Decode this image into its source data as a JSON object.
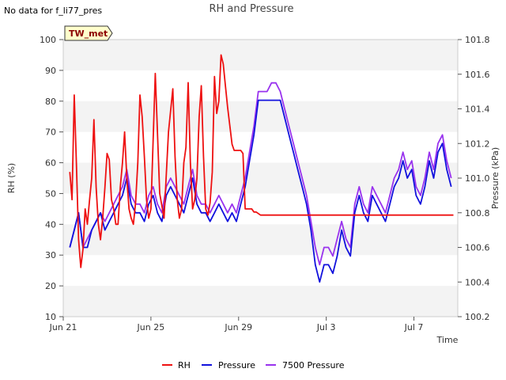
{
  "notice": "No data for f_li77_pres",
  "badge_label": "TW_met",
  "chart_data": {
    "type": "line",
    "title": "RH and Pressure",
    "xlabel": "Time",
    "ylabel": "RH (%)",
    "y2label": "Pressure (kPa)",
    "ylim": [
      10,
      100
    ],
    "y2lim": [
      100.2,
      101.8
    ],
    "y_ticks": [
      "10",
      "20",
      "30",
      "40",
      "50",
      "60",
      "70",
      "80",
      "90",
      "100"
    ],
    "y2_ticks": [
      "100.2",
      "100.4",
      "100.6",
      "100.8",
      "101.0",
      "101.2",
      "101.4",
      "101.6",
      "101.8"
    ],
    "x_ticks": [
      "Jun 21",
      "Jun 25",
      "Jun 29",
      "Jul 3",
      "Jul 7"
    ],
    "x_tick_days": [
      0,
      4,
      8,
      12,
      16
    ],
    "xlim_days": [
      0,
      18
    ],
    "grid": "horizontal bands",
    "legend_position": "bottom-center",
    "colors": {
      "RH": "#ee1111",
      "Pressure": "#1111dd",
      "7500 Pressure": "#9933ee"
    },
    "series": [
      {
        "name": "RH",
        "axis": "left",
        "color": "#ee1111",
        "x": [
          0.3,
          0.4,
          0.5,
          0.6,
          0.7,
          0.8,
          0.9,
          1.0,
          1.1,
          1.2,
          1.3,
          1.4,
          1.5,
          1.6,
          1.7,
          1.8,
          1.9,
          2.0,
          2.1,
          2.2,
          2.3,
          2.4,
          2.5,
          2.6,
          2.7,
          2.8,
          2.9,
          3.0,
          3.1,
          3.2,
          3.3,
          3.4,
          3.5,
          3.6,
          3.7,
          3.8,
          3.9,
          4.0,
          4.2,
          4.4,
          4.6,
          4.8,
          5.0,
          5.1,
          5.2,
          5.3,
          5.4,
          5.5,
          5.6,
          5.7,
          5.8,
          5.9,
          6.0,
          6.1,
          6.2,
          6.3,
          6.4,
          6.5,
          6.6,
          6.7,
          6.8,
          6.9,
          7.0,
          7.1,
          7.2,
          7.3,
          7.4,
          7.5,
          7.6,
          7.7,
          7.8,
          7.9,
          8.0,
          8.1,
          8.2,
          8.3,
          8.4,
          8.5,
          8.6,
          8.7,
          8.8,
          9.0,
          9.3,
          9.6,
          9.7,
          10.0,
          10.5,
          10.7,
          10.8,
          11.2,
          11.6,
          11.7,
          11.8,
          11.9,
          12.0,
          12.1,
          12.2,
          12.3,
          12.4,
          12.5,
          12.6,
          12.7,
          12.8,
          12.9,
          13.0,
          13.1,
          13.2,
          13.3,
          13.4,
          13.5,
          13.6,
          13.7,
          13.8,
          13.9,
          14.0,
          14.2,
          14.4,
          14.6,
          14.8,
          15.0,
          15.2,
          15.4,
          15.6,
          15.8,
          16.0,
          16.1,
          16.2,
          16.3,
          16.4,
          16.5,
          16.6,
          16.7,
          16.8,
          16.9,
          17.0,
          17.1,
          17.2,
          17.3,
          17.4,
          17.5,
          17.6,
          17.7,
          17.8
        ],
        "values": [
          57,
          48,
          82,
          60,
          35,
          26,
          32,
          45,
          40,
          48,
          55,
          74,
          52,
          40,
          35,
          42,
          52,
          63,
          61,
          48,
          45,
          40,
          40,
          52,
          60,
          70,
          55,
          45,
          42,
          40,
          47,
          60,
          82,
          75,
          62,
          48,
          42,
          45,
          89,
          50,
          42,
          70,
          84,
          62,
          48,
          42,
          45,
          60,
          65,
          86,
          60,
          45,
          48,
          55,
          75,
          85,
          62,
          45,
          43,
          47,
          57,
          88,
          76,
          80,
          95,
          92,
          85,
          78,
          72,
          66,
          64,
          64,
          64,
          64,
          63,
          45,
          45,
          45,
          45,
          44,
          44,
          43,
          43,
          43,
          43,
          43,
          43,
          43,
          43,
          43,
          43,
          43,
          43,
          43,
          43,
          43,
          43,
          43,
          43,
          43,
          43,
          43,
          43,
          43,
          43,
          43,
          43,
          43,
          43,
          43,
          43,
          43,
          43,
          43,
          43,
          43,
          43,
          43,
          43,
          43,
          43,
          43,
          43,
          43,
          43,
          43,
          43,
          43,
          43,
          43,
          43,
          43,
          43,
          43,
          43,
          43,
          43,
          43,
          43,
          43,
          43,
          43,
          43
        ]
      },
      {
        "name": "Pressure",
        "axis": "right",
        "color": "#1111dd",
        "x": [
          0.3,
          0.5,
          0.7,
          0.9,
          1.1,
          1.3,
          1.5,
          1.7,
          1.9,
          2.1,
          2.3,
          2.5,
          2.7,
          2.9,
          3.1,
          3.3,
          3.5,
          3.7,
          3.9,
          4.1,
          4.3,
          4.5,
          4.7,
          4.9,
          5.1,
          5.3,
          5.5,
          5.7,
          5.9,
          6.1,
          6.3,
          6.5,
          6.7,
          6.9,
          7.1,
          7.3,
          7.5,
          7.7,
          7.9,
          8.1,
          8.3,
          8.5,
          8.7,
          8.9,
          9.1,
          9.3,
          9.5,
          9.7,
          9.9,
          10.1,
          10.3,
          10.5,
          10.7,
          10.9,
          11.1,
          11.3,
          11.5,
          11.7,
          11.9,
          12.1,
          12.3,
          12.5,
          12.7,
          12.9,
          13.1,
          13.3,
          13.5,
          13.7,
          13.9,
          14.1,
          14.3,
          14.5,
          14.7,
          14.9,
          15.1,
          15.3,
          15.5,
          15.7,
          15.9,
          16.1,
          16.3,
          16.5,
          16.7,
          16.9,
          17.1,
          17.3,
          17.5,
          17.7
        ],
        "values": [
          100.6,
          100.7,
          100.8,
          100.6,
          100.6,
          100.7,
          100.75,
          100.8,
          100.7,
          100.75,
          100.8,
          100.85,
          100.9,
          101.0,
          100.85,
          100.8,
          100.8,
          100.75,
          100.85,
          100.9,
          100.8,
          100.75,
          100.9,
          100.95,
          100.9,
          100.85,
          100.8,
          100.9,
          101.0,
          100.85,
          100.8,
          100.8,
          100.75,
          100.8,
          100.85,
          100.8,
          100.75,
          100.8,
          100.75,
          100.85,
          100.95,
          101.1,
          101.25,
          101.45,
          101.45,
          101.45,
          101.45,
          101.45,
          101.45,
          101.35,
          101.25,
          101.15,
          101.05,
          100.95,
          100.85,
          100.7,
          100.5,
          100.4,
          100.5,
          100.5,
          100.45,
          100.55,
          100.7,
          100.6,
          100.55,
          100.8,
          100.9,
          100.8,
          100.75,
          100.9,
          100.85,
          100.8,
          100.75,
          100.85,
          100.95,
          101.0,
          101.1,
          101.0,
          101.05,
          100.9,
          100.85,
          100.95,
          101.1,
          101.0,
          101.15,
          101.2,
          101.05,
          100.95
        ]
      },
      {
        "name": "7500 Pressure",
        "axis": "right",
        "color": "#9933ee",
        "x": [
          0.3,
          0.5,
          0.7,
          0.9,
          1.1,
          1.3,
          1.5,
          1.7,
          1.9,
          2.1,
          2.3,
          2.5,
          2.7,
          2.9,
          3.1,
          3.3,
          3.5,
          3.7,
          3.9,
          4.1,
          4.3,
          4.5,
          4.7,
          4.9,
          5.1,
          5.3,
          5.5,
          5.7,
          5.9,
          6.1,
          6.3,
          6.5,
          6.7,
          6.9,
          7.1,
          7.3,
          7.5,
          7.7,
          7.9,
          8.1,
          8.3,
          8.5,
          8.7,
          8.9,
          9.1,
          9.3,
          9.5,
          9.7,
          9.9,
          10.1,
          10.3,
          10.5,
          10.7,
          10.9,
          11.1,
          11.3,
          11.5,
          11.7,
          11.9,
          12.1,
          12.3,
          12.5,
          12.7,
          12.9,
          13.1,
          13.3,
          13.5,
          13.7,
          13.9,
          14.1,
          14.3,
          14.5,
          14.7,
          14.9,
          15.1,
          15.3,
          15.5,
          15.7,
          15.9,
          16.1,
          16.3,
          16.5,
          16.7,
          16.9,
          17.1,
          17.3,
          17.5,
          17.7
        ],
        "values": [
          100.6,
          100.7,
          100.8,
          100.6,
          100.65,
          100.7,
          100.75,
          100.8,
          100.75,
          100.8,
          100.85,
          100.9,
          100.95,
          101.05,
          100.9,
          100.85,
          100.85,
          100.8,
          100.9,
          100.95,
          100.85,
          100.8,
          100.95,
          101.0,
          100.95,
          100.9,
          100.85,
          100.95,
          101.05,
          100.9,
          100.85,
          100.85,
          100.8,
          100.85,
          100.9,
          100.85,
          100.8,
          100.85,
          100.8,
          100.9,
          101.0,
          101.15,
          101.3,
          101.5,
          101.5,
          101.5,
          101.55,
          101.55,
          101.5,
          101.4,
          101.3,
          101.2,
          101.1,
          101.0,
          100.9,
          100.75,
          100.6,
          100.5,
          100.6,
          100.6,
          100.55,
          100.65,
          100.75,
          100.65,
          100.6,
          100.85,
          100.95,
          100.85,
          100.8,
          100.95,
          100.9,
          100.85,
          100.8,
          100.9,
          101.0,
          101.05,
          101.15,
          101.05,
          101.1,
          100.95,
          100.9,
          101.0,
          101.15,
          101.05,
          101.2,
          101.25,
          101.1,
          101.0
        ]
      }
    ]
  }
}
